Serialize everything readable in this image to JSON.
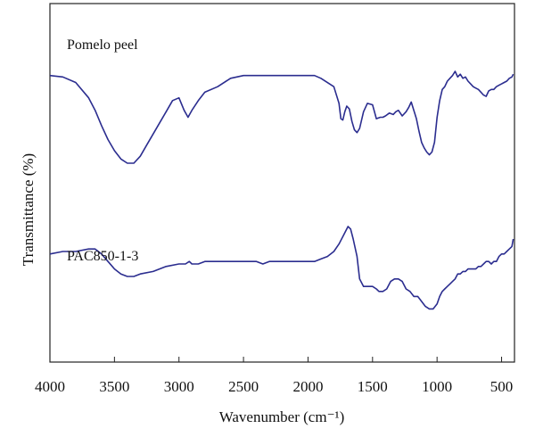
{
  "chart_data": {
    "type": "line",
    "title": "",
    "xlabel": "Wavenumber (cm⁻¹)",
    "ylabel": "Transmittance (%)",
    "x_reversed": true,
    "xlim": [
      4000,
      400
    ],
    "x_ticks": [
      4000,
      3500,
      3000,
      2500,
      2000,
      1500,
      1000,
      500
    ],
    "y_ticks_shown": false,
    "ylim": [
      0,
      100
    ],
    "grid": false,
    "legend": "none",
    "series_color": "#2b2d8f",
    "series": [
      {
        "name": "Pomelo peel",
        "x": [
          4000,
          3900,
          3800,
          3700,
          3650,
          3600,
          3550,
          3500,
          3450,
          3400,
          3350,
          3300,
          3250,
          3200,
          3150,
          3100,
          3050,
          3000,
          2960,
          2930,
          2900,
          2850,
          2800,
          2700,
          2600,
          2500,
          2400,
          2300,
          2200,
          2100,
          2000,
          1950,
          1900,
          1800,
          1760,
          1745,
          1730,
          1715,
          1700,
          1680,
          1660,
          1640,
          1620,
          1600,
          1570,
          1540,
          1500,
          1470,
          1440,
          1420,
          1400,
          1370,
          1340,
          1320,
          1300,
          1270,
          1240,
          1220,
          1200,
          1180,
          1160,
          1140,
          1120,
          1100,
          1080,
          1060,
          1040,
          1020,
          1000,
          980,
          960,
          940,
          920,
          900,
          880,
          860,
          840,
          820,
          800,
          780,
          760,
          740,
          720,
          700,
          680,
          660,
          640,
          620,
          600,
          580,
          560,
          540,
          520,
          500,
          480,
          460,
          440,
          420,
          410
        ],
        "values": [
          88,
          87,
          83,
          72,
          63,
          52,
          42,
          34,
          28,
          25,
          25,
          30,
          38,
          46,
          54,
          62,
          70,
          72,
          63,
          58,
          63,
          70,
          76,
          80,
          86,
          88,
          88,
          88,
          88,
          88,
          88,
          88,
          86,
          80,
          68,
          57,
          56,
          62,
          66,
          64,
          55,
          49,
          47,
          50,
          62,
          68,
          67,
          57,
          58,
          58,
          59,
          61,
          60,
          62,
          63,
          59,
          62,
          65,
          69,
          63,
          57,
          48,
          40,
          36,
          33,
          31,
          33,
          40,
          58,
          70,
          78,
          80,
          84,
          86,
          88,
          91,
          87,
          89,
          86,
          87,
          84,
          82,
          80,
          79,
          78,
          76,
          74,
          73,
          77,
          78,
          78,
          80,
          81,
          82,
          83,
          84,
          86,
          87,
          89
        ]
      },
      {
        "name": "PAC850-1-3",
        "x": [
          4000,
          3900,
          3800,
          3700,
          3650,
          3600,
          3550,
          3500,
          3450,
          3400,
          3350,
          3300,
          3200,
          3100,
          3000,
          2950,
          2920,
          2900,
          2850,
          2800,
          2700,
          2600,
          2500,
          2400,
          2350,
          2300,
          2200,
          2100,
          2000,
          1950,
          1900,
          1850,
          1800,
          1760,
          1720,
          1690,
          1670,
          1650,
          1620,
          1600,
          1570,
          1540,
          1500,
          1470,
          1450,
          1420,
          1390,
          1360,
          1330,
          1300,
          1270,
          1240,
          1210,
          1180,
          1150,
          1120,
          1090,
          1060,
          1030,
          1000,
          980,
          960,
          940,
          920,
          900,
          880,
          860,
          840,
          820,
          800,
          780,
          760,
          740,
          720,
          700,
          680,
          660,
          640,
          620,
          600,
          580,
          560,
          540,
          520,
          500,
          480,
          460,
          440,
          420,
          410
        ],
        "values": [
          -31,
          -30,
          -30,
          -29,
          -29,
          -31,
          -34,
          -37,
          -39,
          -40,
          -40,
          -39,
          -38,
          -36,
          -35,
          -35,
          -34,
          -35,
          -35,
          -34,
          -34,
          -34,
          -34,
          -34,
          -35,
          -34,
          -34,
          -34,
          -34,
          -34,
          -33,
          -32,
          -30,
          -27,
          -23,
          -20,
          -21,
          -25,
          -32,
          -41,
          -44,
          -44,
          -44,
          -45,
          -46,
          -46,
          -45,
          -42,
          -41,
          -41,
          -42,
          -45,
          -46,
          -48,
          -48,
          -50,
          -52,
          -53,
          -53,
          -51,
          -48,
          -46,
          -45,
          -44,
          -43,
          -42,
          -41,
          -39,
          -39,
          -38,
          -38,
          -37,
          -37,
          -37,
          -37,
          -36,
          -36,
          -35,
          -34,
          -34,
          -35,
          -34,
          -34,
          -32,
          -31,
          -31,
          -30,
          -29,
          -28,
          -25
        ]
      }
    ],
    "annotations": [
      {
        "text": "Pomelo peel",
        "series": "Pomelo peel"
      },
      {
        "text": "PAC850-1-3",
        "series": "PAC850-1-3"
      }
    ]
  }
}
